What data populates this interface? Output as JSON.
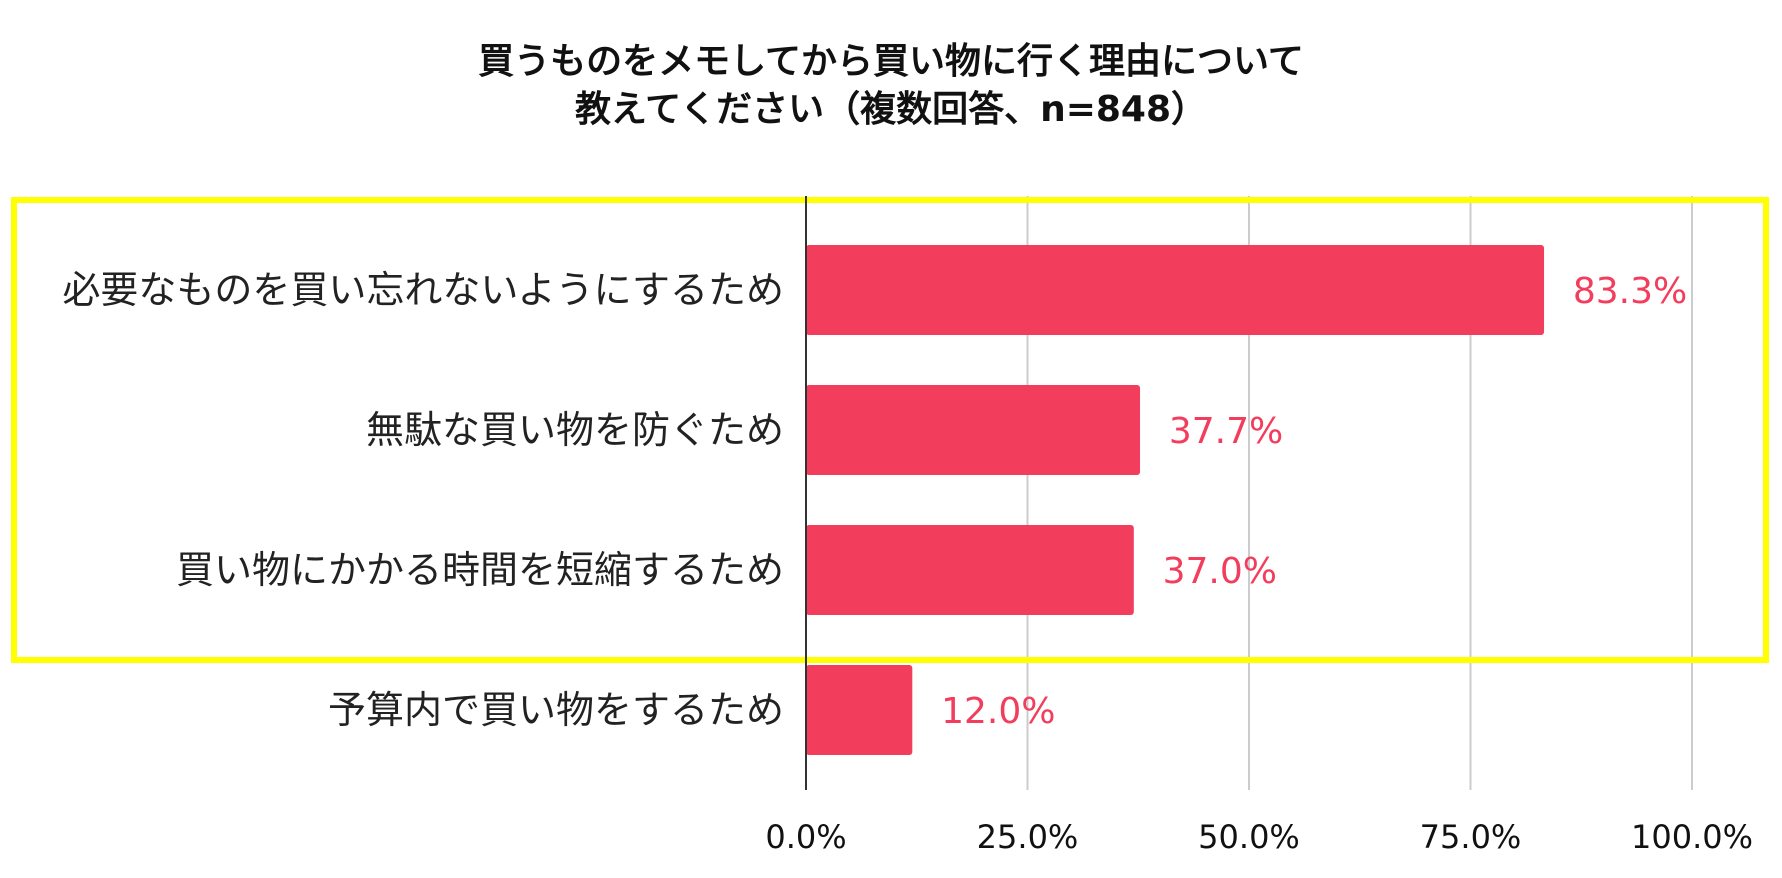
{
  "chart_data": {
    "type": "bar",
    "orientation": "horizontal",
    "title_line1": "買うものをメモしてから買い物に行く理由について",
    "title_line2": "教えてください（複数回答、n=848）",
    "categories": [
      "必要なものを買い忘れないようにするため",
      "無駄な買い物を防ぐため",
      "買い物にかかる時間を短縮するため",
      "予算内で買い物をするため"
    ],
    "values": [
      83.3,
      37.7,
      37.0,
      12.0
    ],
    "value_labels": [
      "83.3%",
      "37.7%",
      "37.0%",
      "12.0%"
    ],
    "xlim": [
      0,
      100
    ],
    "ticks": [
      0,
      25,
      50,
      75,
      100
    ],
    "tick_labels": [
      "0.0%",
      "25.0%",
      "50.0%",
      "75.0%",
      "100.0%"
    ],
    "grid": true,
    "bar_color": "#f23d5c",
    "label_color": "#f23d5c",
    "highlight_color": "#ffff00",
    "highlight_categories": [
      0,
      1,
      2
    ]
  }
}
